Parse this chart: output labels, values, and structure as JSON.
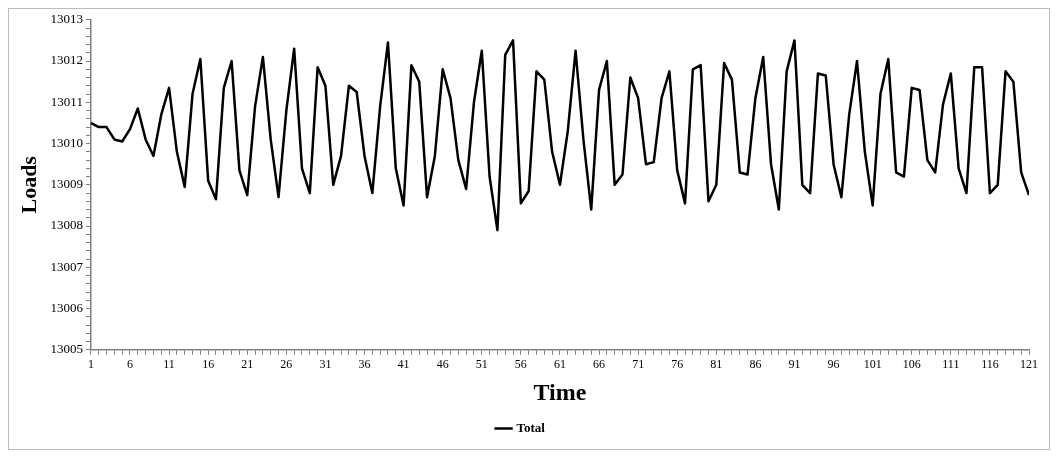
{
  "chart_data": {
    "type": "line",
    "xlabel": "Time",
    "ylabel": "Loads",
    "legend": "bottom",
    "grid": false,
    "marker": "none",
    "line_style": "solid",
    "x": [
      1,
      2,
      3,
      4,
      5,
      6,
      7,
      8,
      9,
      10,
      11,
      12,
      13,
      14,
      15,
      16,
      17,
      18,
      19,
      20,
      21,
      22,
      23,
      24,
      25,
      26,
      27,
      28,
      29,
      30,
      31,
      32,
      33,
      34,
      35,
      36,
      37,
      38,
      39,
      40,
      41,
      42,
      43,
      44,
      45,
      46,
      47,
      48,
      49,
      50,
      51,
      52,
      53,
      54,
      55,
      56,
      57,
      58,
      59,
      60,
      61,
      62,
      63,
      64,
      65,
      66,
      67,
      68,
      69,
      70,
      71,
      72,
      73,
      74,
      75,
      76,
      77,
      78,
      79,
      80,
      81,
      82,
      83,
      84,
      85,
      86,
      87,
      88,
      89,
      90,
      91,
      92,
      93,
      94,
      95,
      96,
      97,
      98,
      99,
      100,
      101,
      102,
      103,
      104,
      105,
      106,
      107,
      108,
      109,
      110,
      111,
      112,
      113,
      114,
      115,
      116,
      117,
      118,
      119,
      120,
      121
    ],
    "xlim": [
      1,
      121
    ],
    "xticks": [
      1,
      6,
      11,
      16,
      21,
      26,
      31,
      36,
      41,
      46,
      51,
      56,
      61,
      66,
      71,
      76,
      81,
      86,
      91,
      96,
      101,
      106,
      111,
      116,
      121
    ],
    "ylim": [
      13005,
      13013
    ],
    "yticks": [
      13005,
      {
        "value": 13005.2,
        "label": null
      },
      {
        "value": 13005.4,
        "label": null
      },
      {
        "value": 13005.6,
        "label": null
      },
      {
        "value": 13005.8,
        "label": null
      },
      13006,
      {
        "value": 13006.2,
        "label": null
      },
      {
        "value": 13006.4,
        "label": null
      },
      {
        "value": 13006.6,
        "label": null
      },
      {
        "value": 13006.8,
        "label": null
      },
      13007,
      {
        "value": 13007.2,
        "label": null
      },
      {
        "value": 13007.4,
        "label": null
      },
      {
        "value": 13007.6,
        "label": null
      },
      {
        "value": 13007.8,
        "label": null
      },
      13008,
      {
        "value": 13008.2,
        "label": null
      },
      {
        "value": 13008.4,
        "label": null
      },
      {
        "value": 13008.6,
        "label": null
      },
      {
        "value": 13008.8,
        "label": null
      },
      13009,
      {
        "value": 13009.2,
        "label": null
      },
      {
        "value": 13009.4,
        "label": null
      },
      {
        "value": 13009.6,
        "label": null
      },
      {
        "value": 13009.8,
        "label": null
      },
      13010,
      {
        "value": 13010.2,
        "label": null
      },
      {
        "value": 13010.4,
        "label": null
      },
      {
        "value": 13010.6,
        "label": null
      },
      {
        "value": 13010.8,
        "label": null
      },
      13011,
      {
        "value": 13011.2,
        "label": null
      },
      {
        "value": 13011.4,
        "label": null
      },
      {
        "value": 13011.6,
        "label": null
      },
      {
        "value": 13011.8,
        "label": null
      },
      13012,
      {
        "value": 13012.2,
        "label": null
      },
      {
        "value": 13012.4,
        "label": null
      },
      {
        "value": 13012.6,
        "label": null
      },
      {
        "value": 13012.8,
        "label": null
      },
      13013
    ],
    "series": [
      {
        "name": "Total",
        "color": "#000000",
        "values": [
          13010.5,
          13010.4,
          13010.4,
          13010.1,
          13010.05,
          13010.35,
          13010.85,
          13010.1,
          13009.7,
          13010.7,
          13011.35,
          13009.8,
          13008.95,
          13011.2,
          13012.05,
          13009.1,
          13008.65,
          13011.35,
          13012.0,
          13009.35,
          13008.75,
          13010.9,
          13012.1,
          13010.1,
          13008.7,
          13010.8,
          13012.3,
          13009.4,
          13008.8,
          13011.85,
          13011.4,
          13009.0,
          13009.7,
          13011.4,
          13011.25,
          13009.7,
          13008.8,
          13010.9,
          13012.45,
          13009.4,
          13008.5,
          13011.9,
          13011.5,
          13008.7,
          13009.7,
          13011.8,
          13011.1,
          13009.6,
          13008.9,
          13011.0,
          13012.25,
          13009.2,
          13007.9,
          13012.15,
          13012.5,
          13008.55,
          13008.85,
          13011.75,
          13011.55,
          13009.8,
          13009.0,
          13010.3,
          13012.25,
          13010.1,
          13008.4,
          13011.3,
          13012.0,
          13009.0,
          13009.25,
          13011.6,
          13011.1,
          13009.5,
          13009.55,
          13011.1,
          13011.75,
          13009.35,
          13008.55,
          13011.8,
          13011.9,
          13008.6,
          13009.0,
          13011.95,
          13011.55,
          13009.3,
          13009.25,
          13011.1,
          13012.1,
          13009.5,
          13008.4,
          13011.75,
          13012.5,
          13009.0,
          13008.8,
          13011.7,
          13011.65,
          13009.5,
          13008.7,
          13010.7,
          13012.0,
          13009.8,
          13008.5,
          13011.2,
          13012.05,
          13009.3,
          13009.2,
          13011.35,
          13011.3,
          13009.6,
          13009.3,
          13010.95,
          13011.7,
          13009.4,
          13008.8,
          13011.85,
          13011.85,
          13008.8,
          13009.0,
          13011.75,
          13011.5,
          13009.3,
          13008.75
        ]
      }
    ]
  }
}
